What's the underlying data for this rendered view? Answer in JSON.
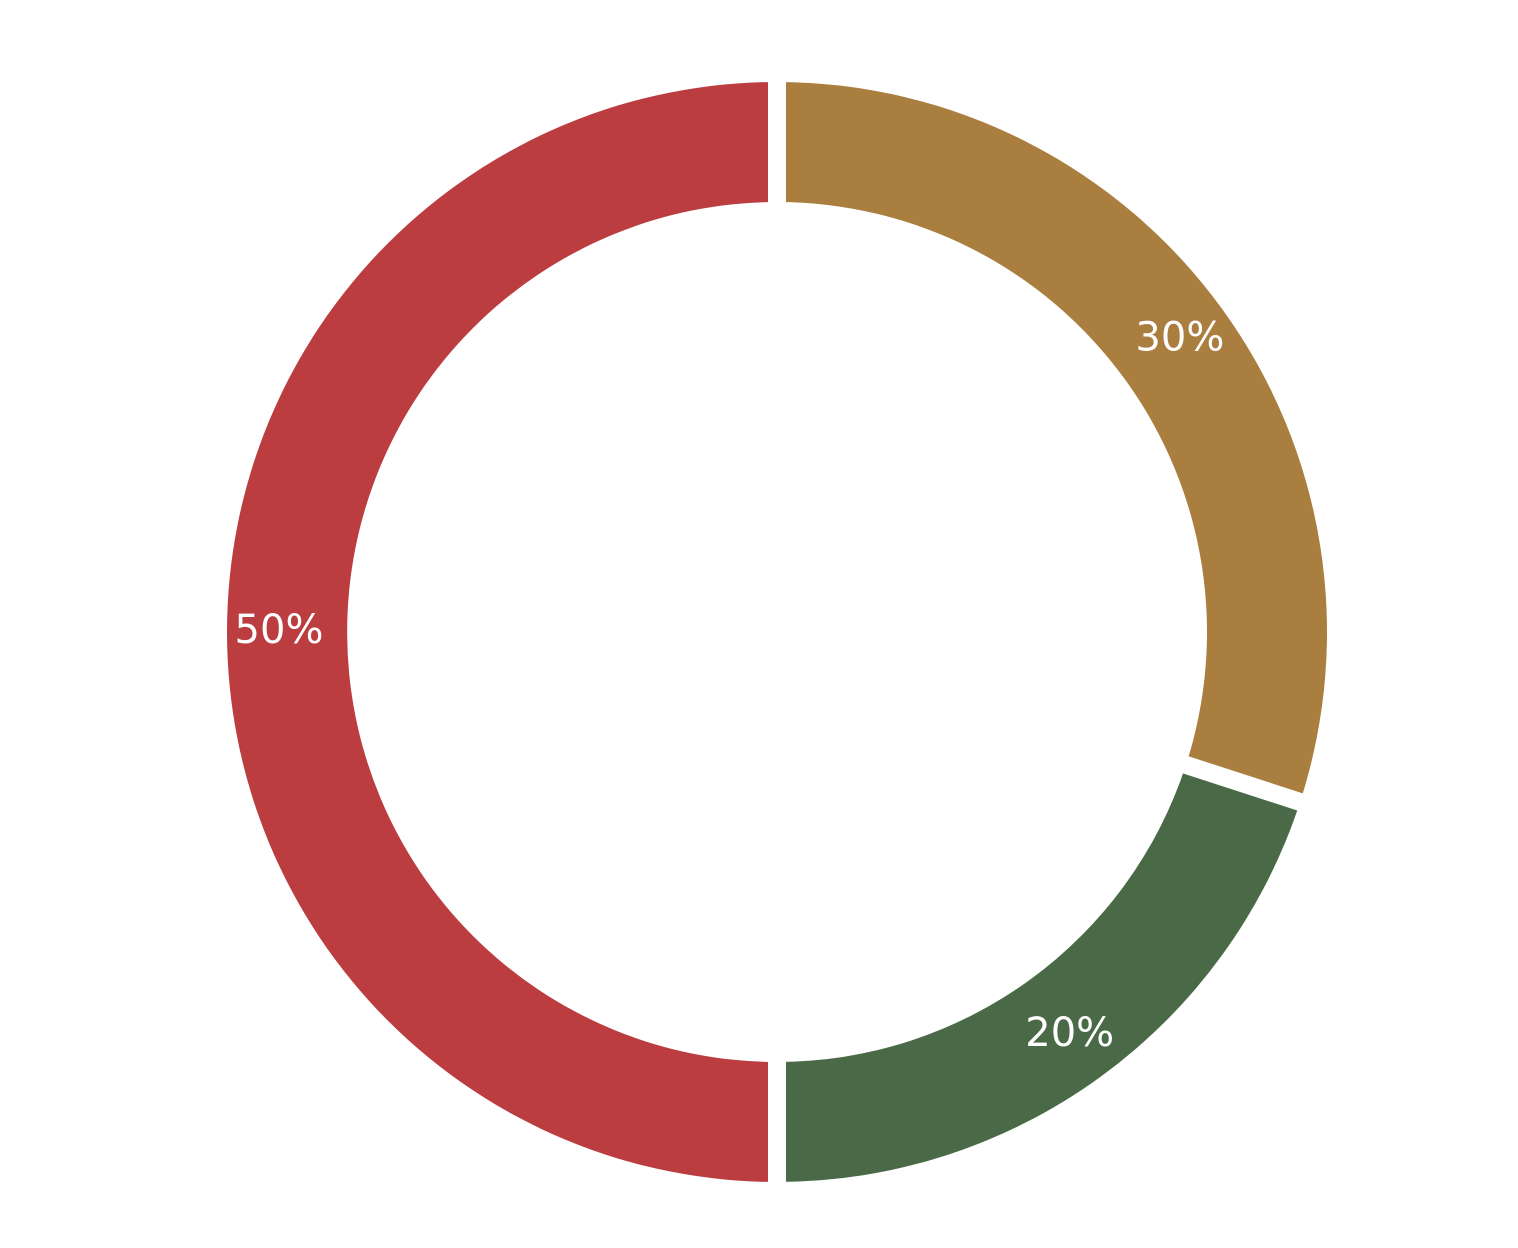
{
  "chart_data": {
    "type": "pie",
    "variant": "donut",
    "title": "",
    "legend": "none",
    "slices": [
      {
        "label": "30%",
        "value": 30,
        "color": "#A97E3F"
      },
      {
        "label": "20%",
        "value": 20,
        "color": "#4A6A47"
      },
      {
        "label": "50%",
        "value": 50,
        "color": "#BB3D40"
      }
    ]
  }
}
